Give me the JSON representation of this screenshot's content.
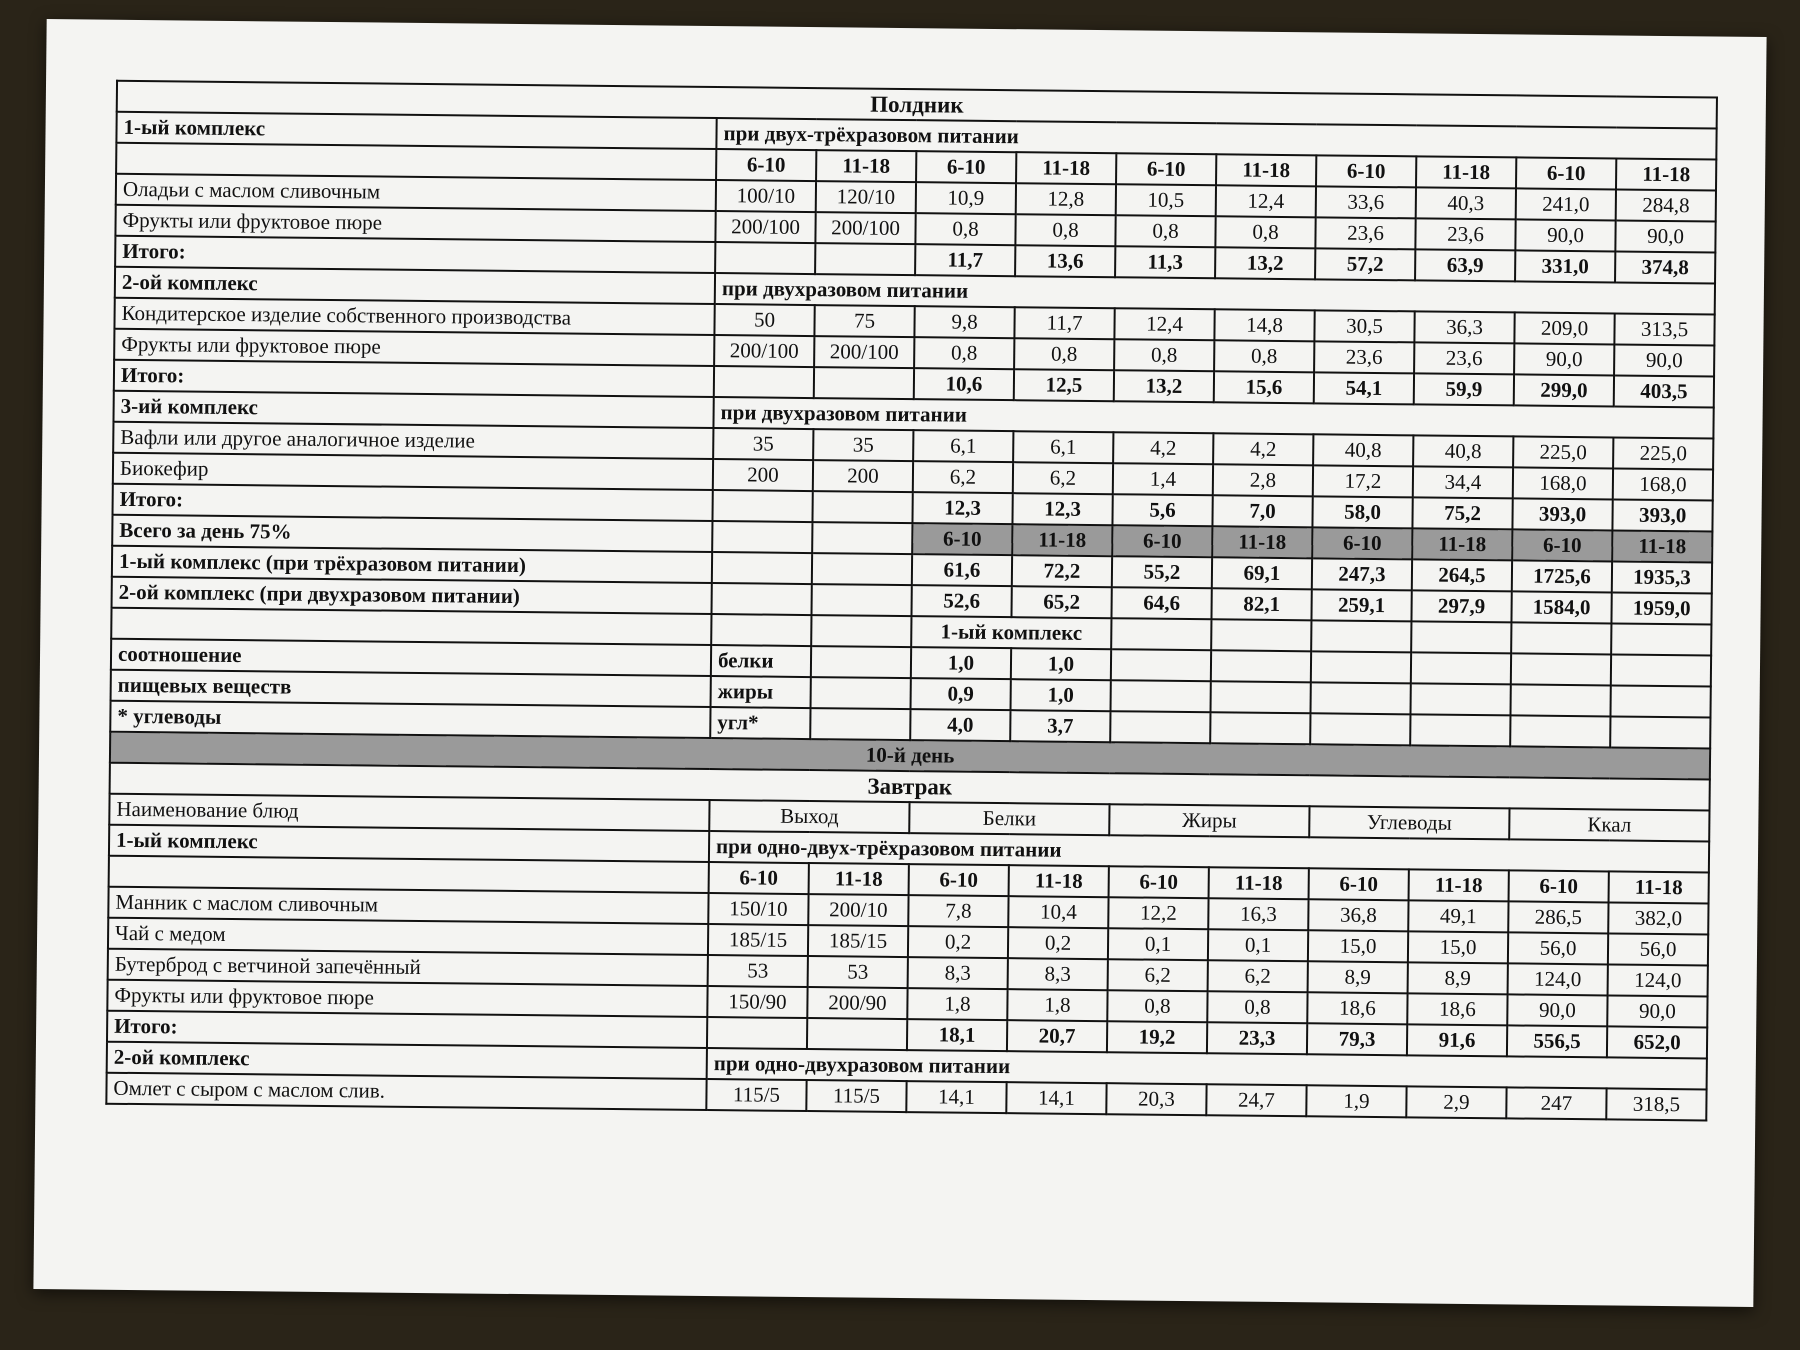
{
  "table": {
    "rows": [
      [
        "Полдник"
      ],
      [
        "1-ый комплекс",
        "при двух-трёхразовом питании"
      ],
      [
        null,
        "6-10",
        "11-18",
        "6-10",
        "11-18",
        "6-10",
        "11-18",
        "6-10",
        "11-18",
        "6-10",
        "11-18"
      ],
      [
        "Оладьи с маслом сливочным",
        "100/10",
        "120/10",
        "10,9",
        "12,8",
        "10,5",
        "12,4",
        "33,6",
        "40,3",
        "241,0",
        "284,8"
      ],
      [
        "Фрукты или фруктовое пюре",
        "200/100",
        "200/100",
        "0,8",
        "0,8",
        "0,8",
        "0,8",
        "23,6",
        "23,6",
        "90,0",
        "90,0"
      ],
      [
        "Итого:",
        null,
        null,
        "11,7",
        "13,6",
        "11,3",
        "13,2",
        "57,2",
        "63,9",
        "331,0",
        "374,8"
      ],
      [
        "2-ой комплекс",
        "при двухразовом питании"
      ],
      [
        "Кондитерское изделие собственного производства",
        "50",
        "75",
        "9,8",
        "11,7",
        "12,4",
        "14,8",
        "30,5",
        "36,3",
        "209,0",
        "313,5"
      ],
      [
        "Фрукты или фруктовое пюре",
        "200/100",
        "200/100",
        "0,8",
        "0,8",
        "0,8",
        "0,8",
        "23,6",
        "23,6",
        "90,0",
        "90,0"
      ],
      [
        "Итого:",
        null,
        null,
        "10,6",
        "12,5",
        "13,2",
        "15,6",
        "54,1",
        "59,9",
        "299,0",
        "403,5"
      ],
      [
        "3-ий комплекс",
        "при двухразовом питании"
      ],
      [
        "Вафли или другое аналогичное изделие",
        "35",
        "35",
        "6,1",
        "6,1",
        "4,2",
        "4,2",
        "40,8",
        "40,8",
        "225,0",
        "225,0"
      ],
      [
        "Биокефир",
        "200",
        "200",
        "6,2",
        "6,2",
        "1,4",
        "2,8",
        "17,2",
        "34,4",
        "168,0",
        "168,0"
      ],
      [
        "Итого:",
        null,
        null,
        "12,3",
        "12,3",
        "5,6",
        "7,0",
        "58,0",
        "75,2",
        "393,0",
        "393,0"
      ],
      [
        "Всего за день 75%",
        null,
        null,
        "6-10",
        "11-18",
        "6-10",
        "11-18",
        "6-10",
        "11-18",
        "6-10",
        "11-18"
      ],
      [
        "1-ый комплекс (при трёхразовом питании)",
        null,
        null,
        "61,6",
        "72,2",
        "55,2",
        "69,1",
        "247,3",
        "264,5",
        "1725,6",
        "1935,3"
      ],
      [
        "2-ой комплекс (при двухразовом питании)",
        null,
        null,
        "52,6",
        "65,2",
        "64,6",
        "82,1",
        "259,1",
        "297,9",
        "1584,0",
        "1959,0"
      ],
      [
        null,
        null,
        null,
        "1-ый комплекс",
        null,
        null,
        null,
        null,
        null,
        null
      ],
      [
        "соотношение",
        "белки",
        null,
        "1,0",
        "1,0",
        null,
        null,
        null,
        null,
        null,
        null
      ],
      [
        "пищевых веществ",
        "жиры",
        null,
        "0,9",
        "1,0",
        null,
        null,
        null,
        null,
        null,
        null
      ],
      [
        "* углеводы",
        "угл*",
        null,
        "4,0",
        "3,7",
        null,
        null,
        null,
        null,
        null,
        null
      ],
      [
        "10-й день"
      ],
      [
        "Завтрак"
      ],
      [
        "Наименование блюд",
        "Выход",
        "Белки",
        "Жиры",
        "Углеводы",
        "Ккал"
      ],
      [
        "1-ый комплекс",
        "при одно-двух-трёхразовом питании"
      ],
      [
        null,
        "6-10",
        "11-18",
        "6-10",
        "11-18",
        "6-10",
        "11-18",
        "6-10",
        "11-18",
        "6-10",
        "11-18"
      ],
      [
        "Манник с маслом сливочным",
        "150/10",
        "200/10",
        "7,8",
        "10,4",
        "12,2",
        "16,3",
        "36,8",
        "49,1",
        "286,5",
        "382,0"
      ],
      [
        "Чай с медом",
        "185/15",
        "185/15",
        "0,2",
        "0,2",
        "0,1",
        "0,1",
        "15,0",
        "15,0",
        "56,0",
        "56,0"
      ],
      [
        "Бутерброд с ветчиной запечённый",
        "53",
        "53",
        "8,3",
        "8,3",
        "6,2",
        "6,2",
        "8,9",
        "8,9",
        "124,0",
        "124,0"
      ],
      [
        "Фрукты или фруктовое пюре",
        "150/90",
        "200/90",
        "1,8",
        "1,8",
        "0,8",
        "0,8",
        "18,6",
        "18,6",
        "90,0",
        "90,0"
      ],
      [
        "Итого:",
        null,
        null,
        "18,1",
        "20,7",
        "19,2",
        "23,3",
        "79,3",
        "91,6",
        "556,5",
        "652,0"
      ],
      [
        "2-ой комплекс",
        "при одно-двухразовом питании"
      ],
      [
        "Омлет с сыром с маслом слив.",
        "115/5",
        "115/5",
        "14,1",
        "14,1",
        "20,3",
        "24,7",
        "1,9",
        "2,9",
        "247",
        "318,5"
      ]
    ]
  }
}
